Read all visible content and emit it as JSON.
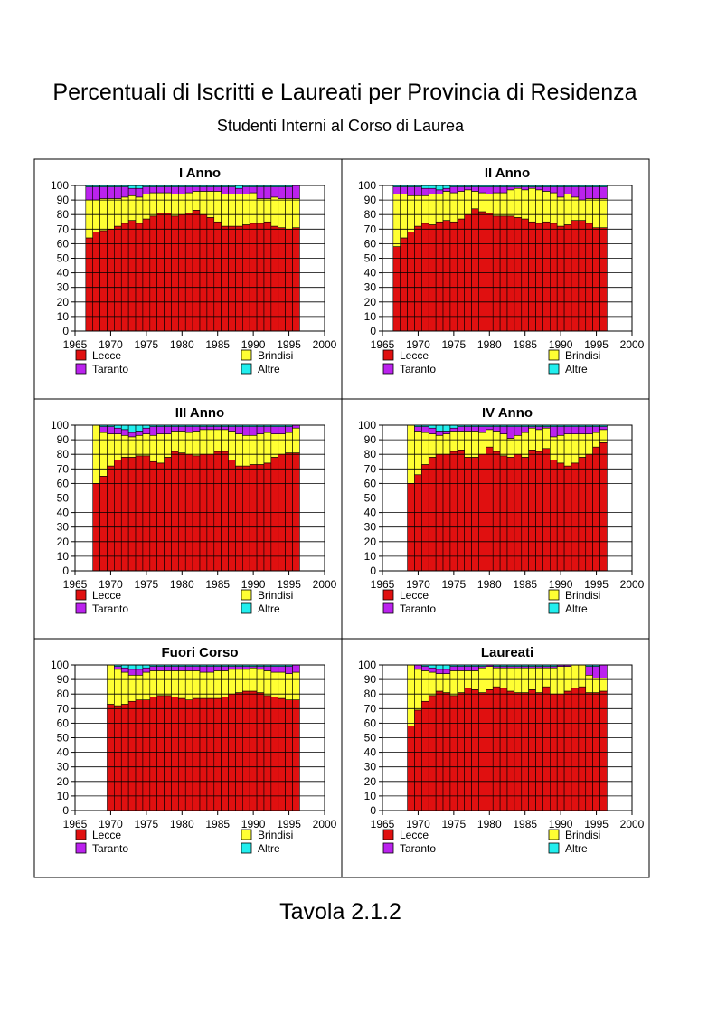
{
  "title": "Percentuali di Iscritti e Laureati per Provincia di Residenza",
  "subtitle": "Studenti Interni al Corso di Laurea",
  "footer": "Tavola 2.1.2",
  "colors": {
    "Lecce": "#e01010",
    "Brindisi": "#ffff33",
    "Taranto": "#bb22ee",
    "Altre": "#22eeee"
  },
  "chart_data": [
    {
      "type": "bar",
      "stacked": true,
      "title": "I Anno",
      "xlim": [
        1965,
        2000
      ],
      "ylim": [
        0,
        100
      ],
      "xticks": [
        1965,
        1970,
        1975,
        1980,
        1985,
        1990,
        1995,
        2000
      ],
      "yticks": [
        0,
        10,
        20,
        30,
        40,
        50,
        60,
        70,
        80,
        90,
        100
      ],
      "legend": [
        "Lecce",
        "Brindisi",
        "Taranto",
        "Altre"
      ],
      "legend_placement": "bottom",
      "grid": true,
      "x": [
        1967,
        1968,
        1969,
        1970,
        1971,
        1972,
        1973,
        1974,
        1975,
        1976,
        1977,
        1978,
        1979,
        1980,
        1981,
        1982,
        1983,
        1984,
        1985,
        1986,
        1987,
        1988,
        1989,
        1990,
        1991,
        1992,
        1993,
        1994,
        1995,
        1996
      ],
      "series": [
        {
          "name": "Lecce",
          "values": [
            64,
            68,
            69,
            70,
            72,
            74,
            76,
            74,
            77,
            79,
            81,
            81,
            79,
            80,
            81,
            83,
            80,
            78,
            75,
            72,
            72,
            72,
            73,
            74,
            74,
            75,
            72,
            71,
            70,
            71
          ]
        },
        {
          "name": "Brindisi",
          "values": [
            26,
            22,
            22,
            21,
            19,
            18,
            17,
            18,
            17,
            16,
            14,
            14,
            15,
            14,
            14,
            13,
            16,
            18,
            21,
            22,
            22,
            22,
            21,
            21,
            17,
            16,
            20,
            20,
            21,
            20
          ]
        },
        {
          "name": "Taranto",
          "values": [
            9,
            9,
            8,
            8,
            8,
            7,
            5,
            6,
            5,
            4,
            4,
            4,
            5,
            5,
            4,
            3,
            3,
            3,
            3,
            5,
            5,
            4,
            5,
            4,
            8,
            8,
            7,
            8,
            8,
            9
          ]
        },
        {
          "name": "Altre",
          "values": [
            1,
            1,
            1,
            1,
            1,
            1,
            2,
            2,
            1,
            1,
            1,
            1,
            1,
            1,
            1,
            1,
            1,
            1,
            1,
            1,
            1,
            2,
            1,
            1,
            1,
            1,
            1,
            1,
            1,
            0
          ]
        }
      ]
    },
    {
      "type": "bar",
      "stacked": true,
      "title": "II Anno",
      "xlim": [
        1965,
        2000
      ],
      "ylim": [
        0,
        100
      ],
      "xticks": [
        1965,
        1970,
        1975,
        1980,
        1985,
        1990,
        1995,
        2000
      ],
      "yticks": [
        0,
        10,
        20,
        30,
        40,
        50,
        60,
        70,
        80,
        90,
        100
      ],
      "legend": [
        "Lecce",
        "Brindisi",
        "Taranto",
        "Altre"
      ],
      "legend_placement": "bottom",
      "grid": true,
      "x": [
        1967,
        1968,
        1969,
        1970,
        1971,
        1972,
        1973,
        1974,
        1975,
        1976,
        1977,
        1978,
        1979,
        1980,
        1981,
        1982,
        1983,
        1984,
        1985,
        1986,
        1987,
        1988,
        1989,
        1990,
        1991,
        1992,
        1993,
        1994,
        1995,
        1996
      ],
      "series": [
        {
          "name": "Lecce",
          "values": [
            58,
            64,
            68,
            72,
            74,
            73,
            75,
            76,
            75,
            77,
            80,
            84,
            82,
            81,
            79,
            79,
            79,
            78,
            77,
            75,
            74,
            75,
            74,
            72,
            73,
            76,
            76,
            74,
            71,
            71
          ]
        },
        {
          "name": "Brindisi",
          "values": [
            36,
            30,
            25,
            21,
            19,
            21,
            19,
            20,
            20,
            19,
            17,
            12,
            13,
            13,
            16,
            16,
            18,
            20,
            20,
            23,
            23,
            21,
            21,
            20,
            21,
            16,
            14,
            17,
            20,
            20
          ]
        },
        {
          "name": "Taranto",
          "values": [
            5,
            5,
            6,
            6,
            5,
            4,
            3,
            2,
            4,
            3,
            2,
            3,
            4,
            5,
            4,
            4,
            2,
            1,
            2,
            1,
            2,
            3,
            4,
            7,
            5,
            7,
            9,
            8,
            8,
            8
          ]
        },
        {
          "name": "Altre",
          "values": [
            1,
            1,
            1,
            1,
            2,
            2,
            3,
            2,
            1,
            1,
            1,
            1,
            1,
            1,
            1,
            1,
            1,
            1,
            1,
            1,
            1,
            1,
            1,
            1,
            1,
            1,
            1,
            1,
            1,
            1
          ]
        }
      ]
    },
    {
      "type": "bar",
      "stacked": true,
      "title": "III Anno",
      "xlim": [
        1965,
        2000
      ],
      "ylim": [
        0,
        100
      ],
      "xticks": [
        1965,
        1970,
        1975,
        1980,
        1985,
        1990,
        1995,
        2000
      ],
      "yticks": [
        0,
        10,
        20,
        30,
        40,
        50,
        60,
        70,
        80,
        90,
        100
      ],
      "legend": [
        "Lecce",
        "Brindisi",
        "Taranto",
        "Altre"
      ],
      "legend_placement": "bottom",
      "grid": true,
      "x": [
        1968,
        1969,
        1970,
        1971,
        1972,
        1973,
        1974,
        1975,
        1976,
        1977,
        1978,
        1979,
        1980,
        1981,
        1982,
        1983,
        1984,
        1985,
        1986,
        1987,
        1988,
        1989,
        1990,
        1991,
        1992,
        1993,
        1994,
        1995,
        1996
      ],
      "series": [
        {
          "name": "Lecce",
          "values": [
            60,
            65,
            72,
            76,
            78,
            78,
            79,
            79,
            75,
            74,
            78,
            82,
            81,
            80,
            79,
            80,
            80,
            82,
            82,
            76,
            72,
            72,
            73,
            73,
            74,
            78,
            80,
            81,
            81
          ]
        },
        {
          "name": "Brindisi",
          "values": [
            40,
            30,
            22,
            18,
            15,
            14,
            14,
            15,
            18,
            20,
            16,
            14,
            15,
            15,
            17,
            17,
            17,
            15,
            15,
            20,
            22,
            21,
            20,
            21,
            21,
            16,
            14,
            14,
            17
          ]
        },
        {
          "name": "Taranto",
          "values": [
            0,
            4,
            5,
            4,
            4,
            3,
            3,
            4,
            6,
            5,
            5,
            3,
            3,
            4,
            3,
            2,
            2,
            2,
            2,
            3,
            5,
            6,
            6,
            5,
            4,
            5,
            5,
            4,
            2
          ]
        },
        {
          "name": "Altre",
          "values": [
            0,
            1,
            1,
            2,
            3,
            5,
            4,
            2,
            1,
            1,
            1,
            1,
            1,
            1,
            1,
            1,
            1,
            1,
            1,
            1,
            1,
            1,
            1,
            1,
            1,
            1,
            1,
            1,
            0
          ]
        }
      ]
    },
    {
      "type": "bar",
      "stacked": true,
      "title": "IV Anno",
      "xlim": [
        1965,
        2000
      ],
      "ylim": [
        0,
        100
      ],
      "xticks": [
        1965,
        1970,
        1975,
        1980,
        1985,
        1990,
        1995,
        2000
      ],
      "yticks": [
        0,
        10,
        20,
        30,
        40,
        50,
        60,
        70,
        80,
        90,
        100
      ],
      "legend": [
        "Lecce",
        "Brindisi",
        "Taranto",
        "Altre"
      ],
      "legend_placement": "bottom",
      "grid": true,
      "x": [
        1969,
        1970,
        1971,
        1972,
        1973,
        1974,
        1975,
        1976,
        1977,
        1978,
        1979,
        1980,
        1981,
        1982,
        1983,
        1984,
        1985,
        1986,
        1987,
        1988,
        1989,
        1990,
        1991,
        1992,
        1993,
        1994,
        1995,
        1996
      ],
      "series": [
        {
          "name": "Lecce",
          "values": [
            60,
            66,
            73,
            78,
            80,
            80,
            82,
            83,
            78,
            78,
            80,
            85,
            82,
            79,
            78,
            80,
            78,
            83,
            82,
            84,
            76,
            74,
            72,
            74,
            78,
            80,
            85,
            88
          ]
        },
        {
          "name": "Brindisi",
          "values": [
            40,
            30,
            22,
            16,
            13,
            14,
            14,
            13,
            18,
            18,
            15,
            12,
            14,
            15,
            13,
            13,
            17,
            15,
            15,
            14,
            16,
            19,
            22,
            20,
            16,
            14,
            10,
            9
          ]
        },
        {
          "name": "Taranto",
          "values": [
            0,
            3,
            4,
            4,
            3,
            2,
            2,
            3,
            3,
            3,
            4,
            2,
            3,
            5,
            8,
            6,
            4,
            1,
            2,
            1,
            7,
            6,
            5,
            5,
            5,
            5,
            4,
            2
          ]
        },
        {
          "name": "Altre",
          "values": [
            0,
            1,
            1,
            2,
            4,
            4,
            2,
            1,
            1,
            1,
            1,
            1,
            1,
            1,
            1,
            1,
            1,
            1,
            1,
            1,
            1,
            1,
            1,
            1,
            1,
            1,
            1,
            1
          ]
        }
      ]
    },
    {
      "type": "bar",
      "stacked": true,
      "title": "Fuori Corso",
      "xlim": [
        1965,
        2000
      ],
      "ylim": [
        0,
        100
      ],
      "xticks": [
        1965,
        1970,
        1975,
        1980,
        1985,
        1990,
        1995,
        2000
      ],
      "yticks": [
        0,
        10,
        20,
        30,
        40,
        50,
        60,
        70,
        80,
        90,
        100
      ],
      "legend": [
        "Lecce",
        "Brindisi",
        "Taranto",
        "Altre"
      ],
      "legend_placement": "bottom",
      "grid": true,
      "x": [
        1970,
        1971,
        1972,
        1973,
        1974,
        1975,
        1976,
        1977,
        1978,
        1979,
        1980,
        1981,
        1982,
        1983,
        1984,
        1985,
        1986,
        1987,
        1988,
        1989,
        1990,
        1991,
        1992,
        1993,
        1994,
        1995,
        1996
      ],
      "series": [
        {
          "name": "Lecce",
          "values": [
            73,
            72,
            73,
            75,
            76,
            76,
            78,
            79,
            79,
            78,
            77,
            76,
            77,
            77,
            77,
            77,
            78,
            80,
            81,
            82,
            82,
            81,
            79,
            78,
            77,
            76,
            76
          ]
        },
        {
          "name": "Brindisi",
          "values": [
            27,
            25,
            22,
            18,
            17,
            19,
            18,
            17,
            17,
            18,
            19,
            20,
            19,
            18,
            18,
            19,
            18,
            17,
            16,
            15,
            16,
            16,
            17,
            17,
            18,
            18,
            19
          ]
        },
        {
          "name": "Taranto",
          "values": [
            0,
            2,
            3,
            4,
            4,
            3,
            3,
            3,
            3,
            3,
            3,
            3,
            3,
            4,
            4,
            3,
            3,
            2,
            2,
            2,
            1,
            2,
            3,
            4,
            4,
            5,
            5
          ]
        },
        {
          "name": "Altre",
          "values": [
            0,
            1,
            2,
            3,
            3,
            2,
            1,
            1,
            1,
            1,
            1,
            1,
            1,
            1,
            1,
            1,
            1,
            1,
            1,
            1,
            1,
            1,
            1,
            1,
            1,
            1,
            0
          ]
        }
      ]
    },
    {
      "type": "bar",
      "stacked": true,
      "title": "Laureati",
      "xlim": [
        1965,
        2000
      ],
      "ylim": [
        0,
        100
      ],
      "xticks": [
        1965,
        1970,
        1975,
        1980,
        1985,
        1990,
        1995,
        2000
      ],
      "yticks": [
        0,
        10,
        20,
        30,
        40,
        50,
        60,
        70,
        80,
        90,
        100
      ],
      "legend": [
        "Lecce",
        "Brindisi",
        "Taranto",
        "Altre"
      ],
      "legend_placement": "bottom",
      "grid": true,
      "x": [
        1969,
        1970,
        1971,
        1972,
        1973,
        1974,
        1975,
        1976,
        1977,
        1978,
        1979,
        1980,
        1981,
        1982,
        1983,
        1984,
        1985,
        1986,
        1987,
        1988,
        1989,
        1990,
        1991,
        1992,
        1993,
        1994,
        1995,
        1996
      ],
      "series": [
        {
          "name": "Lecce",
          "values": [
            58,
            69,
            75,
            79,
            82,
            81,
            79,
            81,
            84,
            83,
            81,
            83,
            85,
            84,
            82,
            81,
            81,
            83,
            81,
            85,
            80,
            80,
            82,
            84,
            85,
            81,
            81,
            82
          ]
        },
        {
          "name": "Brindisi",
          "values": [
            42,
            28,
            21,
            16,
            12,
            13,
            17,
            15,
            12,
            13,
            17,
            16,
            13,
            14,
            16,
            17,
            17,
            15,
            17,
            13,
            18,
            19,
            17,
            16,
            15,
            12,
            10,
            9
          ]
        },
        {
          "name": "Taranto",
          "values": [
            0,
            3,
            3,
            3,
            3,
            3,
            3,
            3,
            3,
            3,
            1,
            1,
            1,
            1,
            1,
            1,
            1,
            1,
            1,
            1,
            1,
            1,
            1,
            0,
            0,
            6,
            8,
            9
          ]
        },
        {
          "name": "Altre",
          "values": [
            0,
            0,
            1,
            2,
            3,
            3,
            1,
            1,
            1,
            1,
            1,
            0,
            1,
            1,
            1,
            1,
            1,
            1,
            1,
            1,
            1,
            0,
            0,
            0,
            0,
            1,
            1,
            0
          ]
        }
      ]
    }
  ]
}
